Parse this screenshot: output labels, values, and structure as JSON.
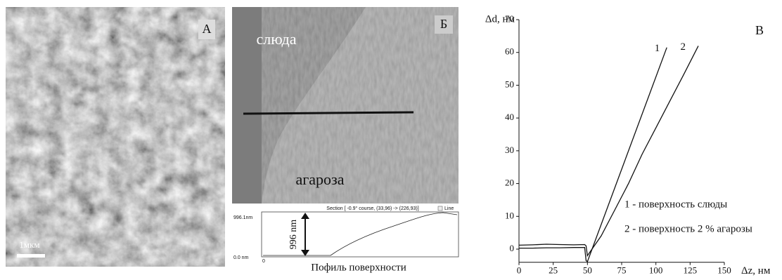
{
  "panel_a": {
    "label": "А",
    "scale_bar": "1мкм"
  },
  "panel_b": {
    "label": "Б",
    "region_top": "слюда",
    "region_bottom": "агароза",
    "profile": {
      "header": "Section [ -0.9° course, (33,96) -> (226,93)]",
      "checkbox": "Line",
      "y_top": "996.1nm",
      "y_bottom": "0.0  nm",
      "x_start": "0",
      "height": "996 nm",
      "caption": "Пофиль поверхности"
    }
  },
  "chart_data": {
    "type": "line",
    "panel_label": "В",
    "ylabel": "Δd, нм",
    "xlabel": "Δz, нм",
    "xlim": [
      0,
      150
    ],
    "ylim": [
      -4,
      70
    ],
    "xticks": [
      0,
      25,
      50,
      75,
      100,
      125,
      150
    ],
    "yticks": [
      0,
      10,
      20,
      30,
      40,
      50,
      60,
      70
    ],
    "series": [
      {
        "name": "1",
        "color": "#111111",
        "x": [
          0,
          10,
          20,
          30,
          40,
          48,
          49,
          50,
          108
        ],
        "values": [
          0.3,
          0.3,
          0.4,
          0.4,
          0.5,
          0.5,
          -3.5,
          -3.8,
          61.5
        ]
      },
      {
        "name": "2",
        "color": "#111111",
        "x": [
          0,
          10,
          20,
          30,
          40,
          48,
          49,
          50,
          55,
          60,
          70,
          80,
          90,
          100,
          110,
          120,
          131
        ],
        "values": [
          1.2,
          1.3,
          1.5,
          1.4,
          1.3,
          1.4,
          1.0,
          -2,
          1,
          4,
          12,
          20,
          29,
          37,
          45,
          53,
          62
        ]
      }
    ],
    "annotations": [
      "1 - поверхность слюды",
      "2 - поверхность 2 % агарозы"
    ]
  }
}
